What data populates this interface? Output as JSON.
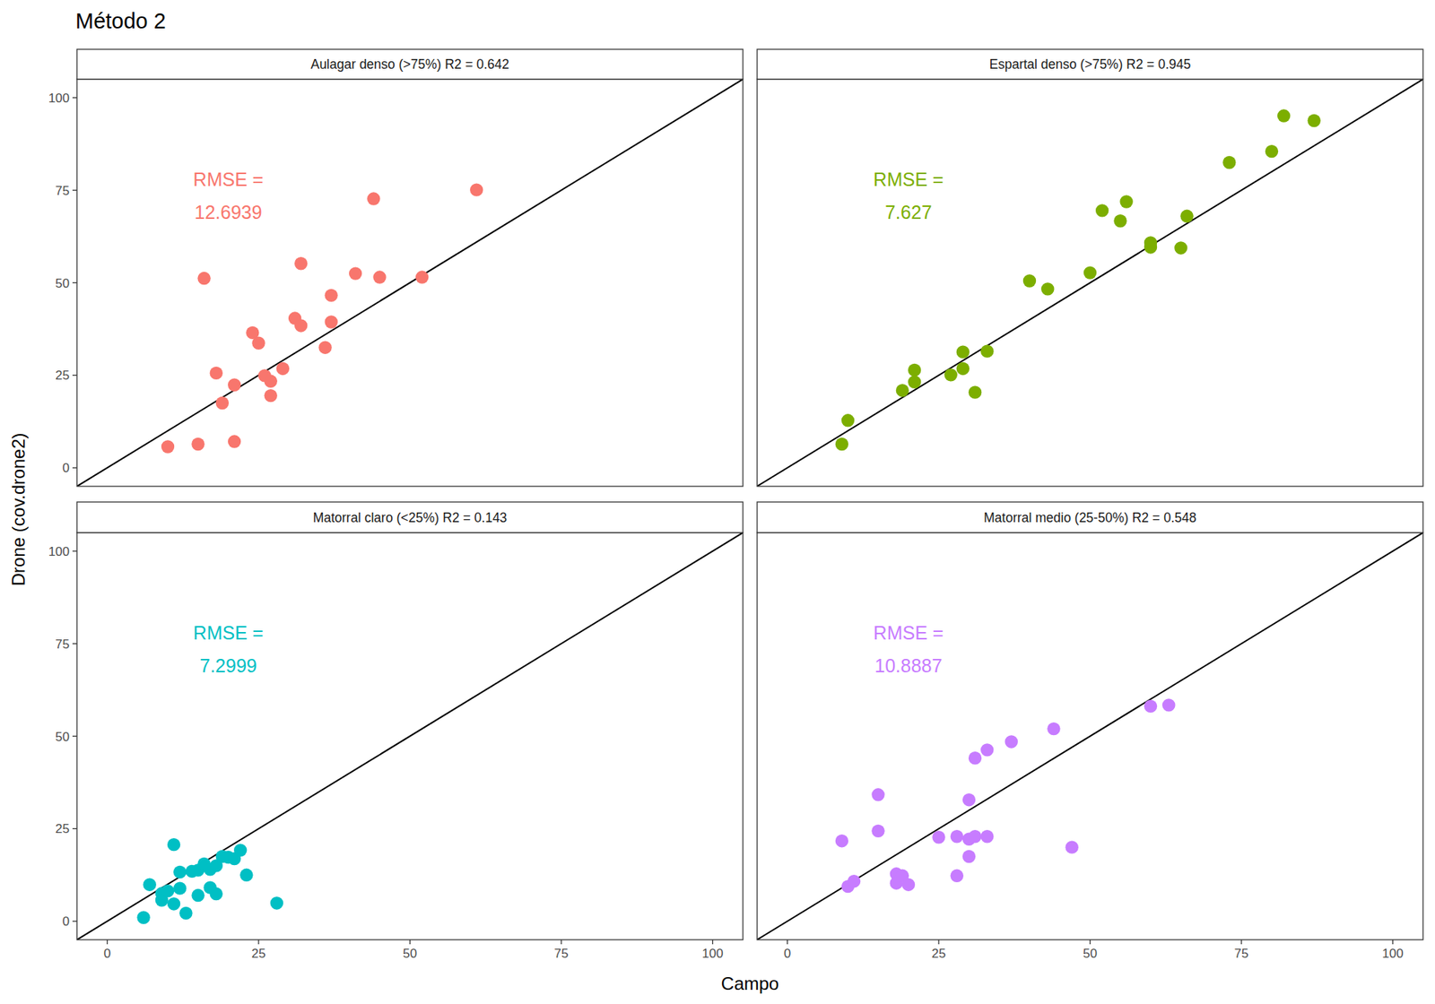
{
  "chart_data": {
    "type": "scatter",
    "title": "Método 2",
    "x_label": "Campo",
    "y_label": "Drone (cov.drone2)",
    "xlim": [
      -5,
      105
    ],
    "ylim": [
      -5,
      105
    ],
    "xticks": [
      0,
      25,
      50,
      75,
      100
    ],
    "yticks": [
      0,
      25,
      50,
      75,
      100
    ],
    "grid": false,
    "marker": "circle",
    "series": [
      {
        "name": "Aulagar denso (>75%) R2 = 0.642",
        "color": "#F8766D",
        "annotations": [
          "RMSE =",
          "12.6939"
        ],
        "x": [
          10,
          15,
          16,
          21,
          19,
          18,
          21,
          24,
          25,
          26,
          27,
          27,
          29,
          31,
          32,
          32,
          36,
          37,
          37,
          41,
          44,
          45,
          52,
          61
        ],
        "values": [
          5.7,
          6.4,
          51.2,
          7.1,
          17.5,
          25.6,
          22.4,
          36.5,
          33.7,
          24.9,
          23.4,
          19.5,
          26.8,
          40.4,
          38.4,
          55.2,
          32.5,
          39.4,
          46.6,
          52.5,
          72.7,
          51.5,
          51.5,
          75.1
        ]
      },
      {
        "name": "Espartal denso (>75%) R2 = 0.945",
        "color": "#7CAE00",
        "annotations": [
          "RMSE =",
          "7.627"
        ],
        "x": [
          9,
          10,
          19,
          21,
          21,
          27,
          29,
          29,
          31,
          33,
          40,
          43,
          50,
          52,
          55,
          56,
          60,
          60,
          65,
          66,
          73,
          80,
          82,
          87
        ],
        "values": [
          6.4,
          12.8,
          20.9,
          26.4,
          23.2,
          25.1,
          31.3,
          26.8,
          20.4,
          31.5,
          50.5,
          48.3,
          52.7,
          69.5,
          66.7,
          71.9,
          60.8,
          59.6,
          59.4,
          68.0,
          82.5,
          85.5,
          95.1,
          93.8
        ]
      },
      {
        "name": "Matorral claro (<25%) R2 = 0.143",
        "color": "#00BFC4",
        "annotations": [
          "RMSE =",
          "7.2999"
        ],
        "x": [
          6,
          7,
          9,
          9,
          10,
          11,
          11,
          12,
          13,
          12,
          14,
          15,
          15,
          16,
          17,
          17,
          18,
          18,
          19,
          20,
          21,
          22,
          23,
          28
        ],
        "values": [
          1.0,
          9.9,
          5.7,
          7.5,
          8.2,
          4.7,
          20.7,
          8.9,
          2.2,
          13.3,
          13.5,
          13.8,
          7.0,
          15.5,
          14.0,
          9.1,
          15.0,
          7.4,
          17.5,
          17.3,
          16.9,
          19.2,
          12.5,
          4.9
        ]
      },
      {
        "name": "Matorral medio (25-50%) R2 = 0.548",
        "color": "#C77CFF",
        "annotations": [
          "RMSE =",
          "10.8887"
        ],
        "x": [
          9,
          10,
          11,
          15,
          15,
          18,
          18,
          19,
          20,
          25,
          28,
          28,
          30,
          30,
          30,
          31,
          31,
          33,
          33,
          37,
          44,
          47,
          60,
          63
        ],
        "values": [
          21.7,
          9.4,
          10.8,
          34.2,
          24.4,
          12.8,
          10.3,
          12.3,
          9.9,
          22.7,
          22.9,
          12.3,
          32.8,
          22.2,
          17.5,
          22.9,
          44.1,
          22.9,
          46.3,
          48.5,
          52.0,
          20.0,
          58.1,
          58.4
        ]
      }
    ]
  }
}
